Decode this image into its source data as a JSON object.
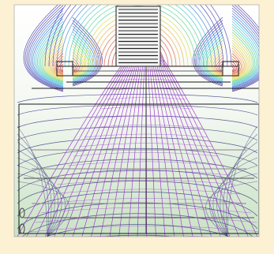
{
  "figure": {
    "frame_color": "#fdf1d4",
    "plot_background_top": "#ffffff",
    "plot_background_bottom": "#c9e2c4",
    "geometry_line_color": "#1a1a1a",
    "trajectory_color": "#9a2fd0",
    "equipotential_colors": [
      "#3a2ea8",
      "#2f6fd6",
      "#30b7d8",
      "#3fd08a",
      "#d7d33a",
      "#f0a030",
      "#e04a2a",
      "#c81818"
    ],
    "icons": [
      "electrode-gun-icon",
      "focus-ring-icon",
      "screen-plane-icon"
    ]
  }
}
